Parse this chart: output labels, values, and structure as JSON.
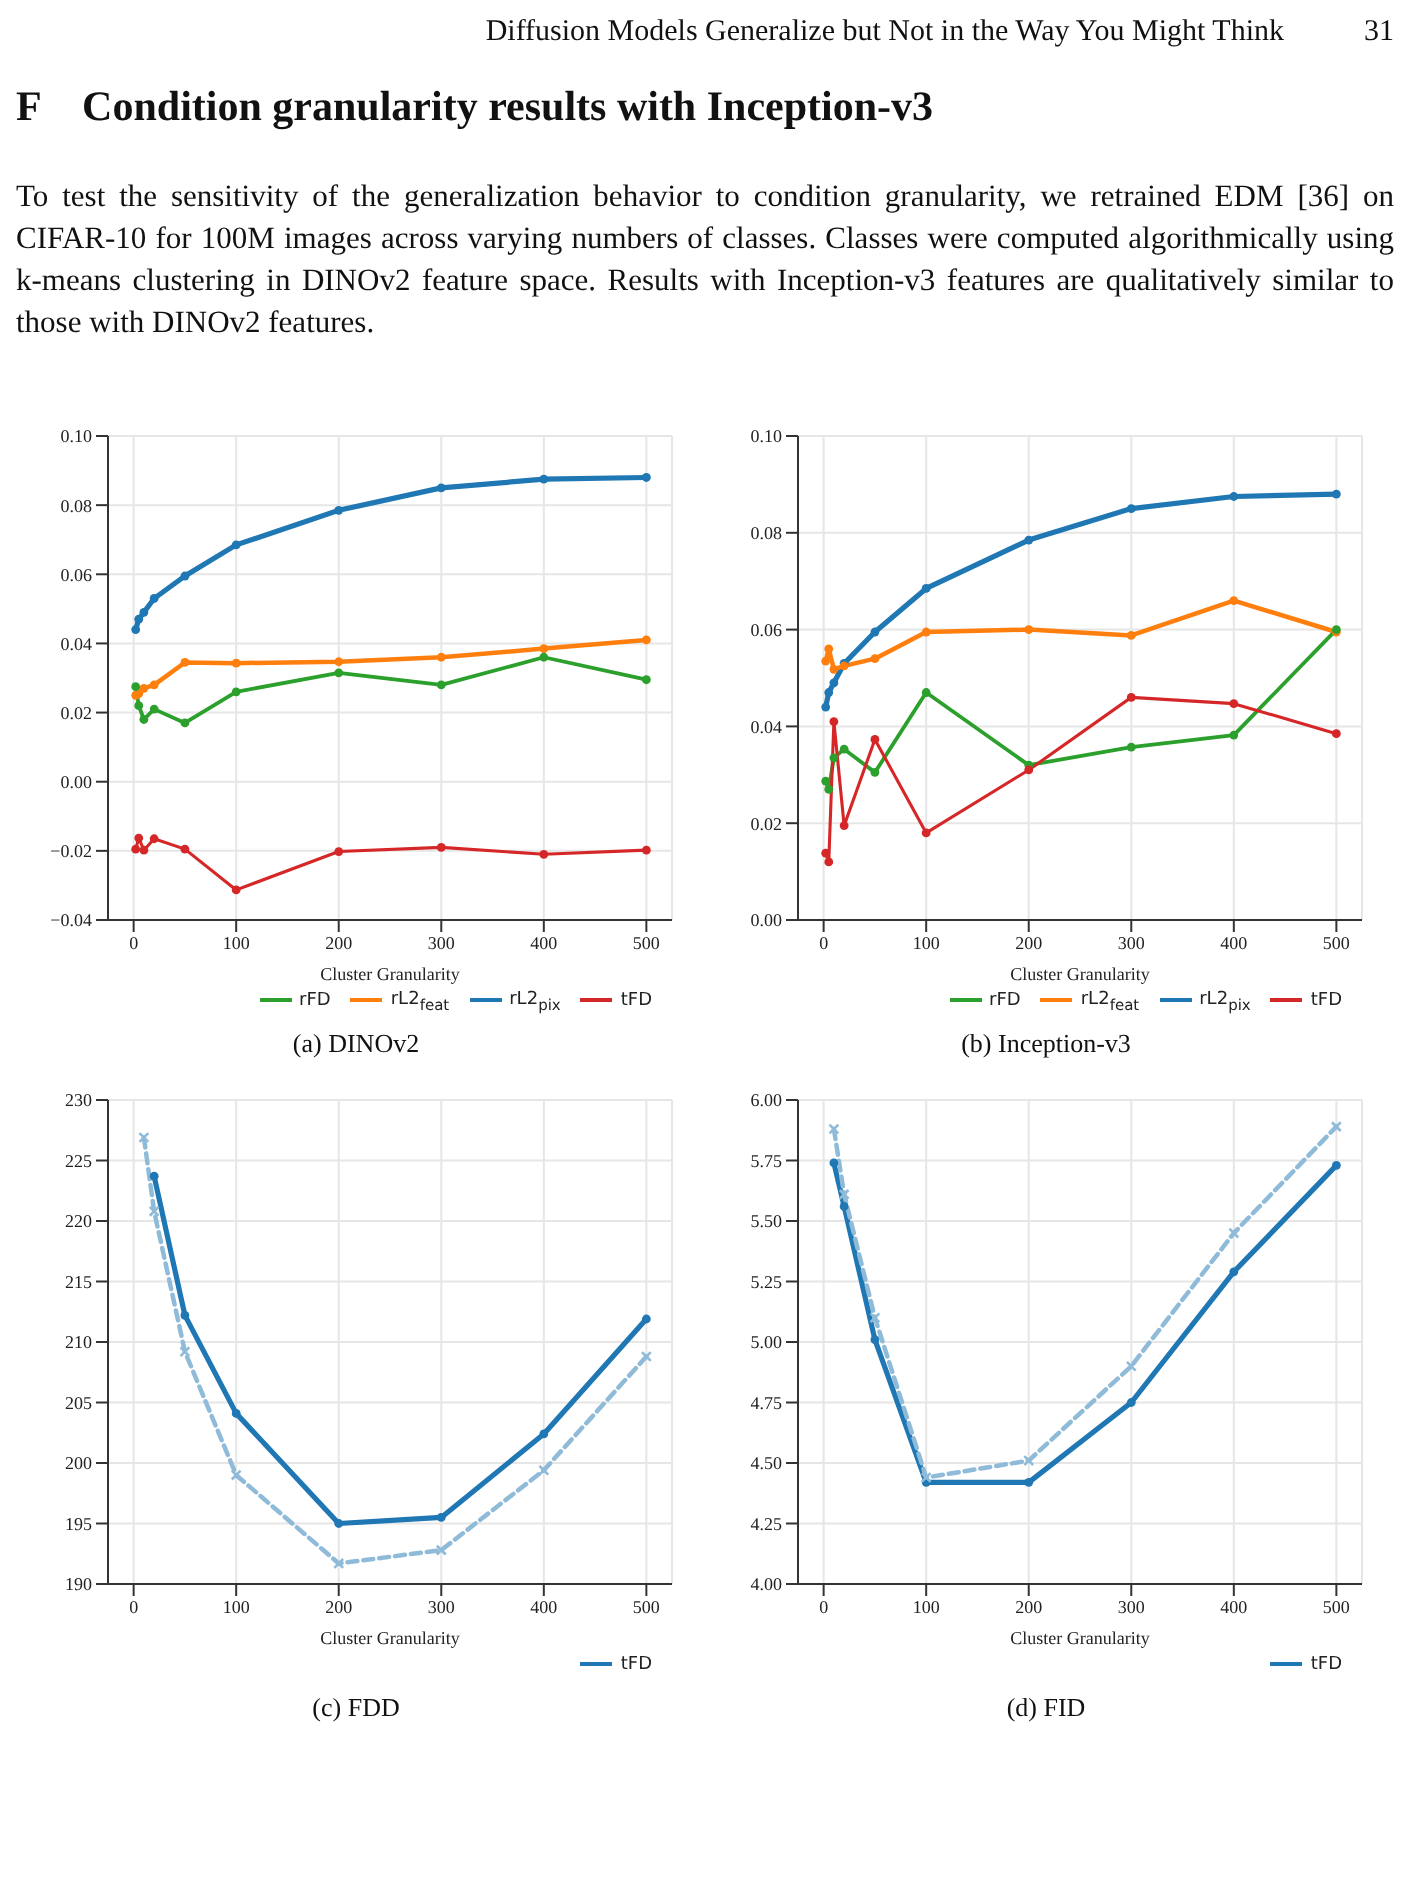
{
  "chart_data": [
    {
      "type": "line",
      "title": "(a) DINOv2",
      "xlabel": "Cluster Granularity",
      "annotations": [
        "Diffusion Models Generalize but Not in the Way You Might Think",
        "31",
        "F    Condition granularity results with Inception-v3",
        "To test the sensitivity of the generalization behavior to condition granularity, we retrained EDM [36] on CIFAR-10 for 100M images across varying numbers of classes. Classes were computed algorithmically using k-means clustering in DINOv2 feature space. Results with Inception-v3 features are qualitatively similar to those with DINOv2 features."
      ],
      "x": [
        2,
        5,
        10,
        20,
        50,
        100,
        200,
        300,
        400,
        500
      ],
      "series": [
        {
          "name": "rL2$_{pix}$",
          "color": "#1f77b4",
          "values": [
            0.044,
            0.047,
            0.049,
            0.053,
            0.0595,
            0.0685,
            0.0785,
            0.085,
            0.0875,
            0.088
          ]
        },
        {
          "name": "rL2$_{feat}$",
          "color": "#ff7f0e",
          "values": [
            0.025,
            0.0255,
            0.027,
            0.028,
            0.0345,
            0.0343,
            0.0347,
            0.036,
            0.0385,
            0.041
          ]
        },
        {
          "name": "rFD",
          "color": "#2ca02c",
          "values": [
            0.0275,
            0.022,
            0.018,
            0.021,
            0.017,
            0.026,
            0.0315,
            0.028,
            0.036,
            0.0295
          ]
        },
        {
          "name": "tFD",
          "color": "#d62728",
          "values": [
            -0.0195,
            -0.0163,
            -0.0198,
            -0.0165,
            -0.0195,
            -0.0313,
            -0.0202,
            -0.019,
            -0.021,
            -0.0198
          ]
        }
      ],
      "xlim": [
        -25,
        525
      ],
      "xticks": [
        0,
        100,
        200,
        300,
        400,
        500
      ],
      "ylim": [
        -0.04,
        0.1
      ],
      "yticks": [
        {
          "value": -0.04,
          "label": "−0.04"
        },
        {
          "value": -0.02,
          "label": "−0.02"
        },
        {
          "value": 0,
          "label": "0.00"
        },
        {
          "value": 0.02,
          "label": "0.02"
        },
        {
          "value": 0.04,
          "label": "0.04"
        },
        {
          "value": 0.06,
          "label": "0.06"
        },
        {
          "value": 0.08,
          "label": "0.08"
        },
        {
          "value": 0.1,
          "label": "0.10"
        }
      ],
      "grid": true,
      "legend": "bottom right",
      "marker": "circle",
      "line_style": "solid"
    },
    {
      "type": "line",
      "title": "(b) Inception-v3",
      "xlabel": "Cluster Granularity",
      "x": [
        2,
        5,
        10,
        20,
        50,
        100,
        200,
        300,
        400,
        500
      ],
      "series": [
        {
          "name": "rL2$_{pix}$",
          "color": "#1f77b4",
          "values": [
            0.044,
            0.047,
            0.049,
            0.053,
            0.0595,
            0.0685,
            0.0785,
            0.085,
            0.0875,
            0.088
          ]
        },
        {
          "name": "rL2$_{feat}$",
          "color": "#ff7f0e",
          "values": [
            0.0535,
            0.056,
            0.0518,
            0.0525,
            0.054,
            0.0595,
            0.06,
            0.0588,
            0.066,
            0.0595
          ]
        },
        {
          "name": "rFD",
          "color": "#2ca02c",
          "values": [
            0.0287,
            0.027,
            0.0335,
            0.0353,
            0.0305,
            0.047,
            0.032,
            0.0357,
            0.0382,
            0.06
          ]
        },
        {
          "name": "tFD",
          "color": "#d62728",
          "values": [
            0.0138,
            0.012,
            0.041,
            0.0195,
            0.0373,
            0.018,
            0.031,
            0.046,
            0.0447,
            0.0385
          ]
        }
      ],
      "xlim": [
        -25,
        525
      ],
      "xticks": [
        0,
        100,
        200,
        300,
        400,
        500
      ],
      "ylim": [
        0,
        0.1
      ],
      "yticks": [
        {
          "value": 0,
          "label": "0.00"
        },
        {
          "value": 0.02,
          "label": "0.02"
        },
        {
          "value": 0.04,
          "label": "0.04"
        },
        {
          "value": 0.06,
          "label": "0.06"
        },
        {
          "value": 0.08,
          "label": "0.08"
        },
        {
          "value": 0.1,
          "label": "0.10"
        }
      ],
      "grid": true,
      "legend": "bottom right",
      "marker": "circle",
      "line_style": "solid"
    },
    {
      "type": "line",
      "title": "(c) FDD",
      "xlabel": "Cluster Granularity",
      "x": [
        10,
        20,
        50,
        100,
        200,
        300,
        400,
        500
      ],
      "series": [
        {
          "name": "tFD",
          "color": "#1f77b4",
          "values": [
            null,
            223.7,
            212.2,
            204.1,
            195.0,
            195.5,
            202.4,
            211.9
          ]
        },
        {
          "color": "#8fbbd9",
          "line_style": "dashed",
          "marker": "cross",
          "values": [
            226.9,
            220.8,
            209.2,
            199.0,
            191.7,
            192.8,
            199.4,
            208.8
          ]
        }
      ],
      "xlim": [
        -25,
        525
      ],
      "xticks": [
        0,
        100,
        200,
        300,
        400,
        500
      ],
      "ylim": [
        190,
        230
      ],
      "yticks": [
        190,
        195,
        200,
        205,
        210,
        215,
        220,
        225,
        230
      ],
      "grid": true,
      "legend": "bottom right",
      "marker": "circle",
      "line_style": "solid"
    },
    {
      "type": "line",
      "title": "(d) FID",
      "xlabel": "Cluster Granularity",
      "x": [
        10,
        20,
        50,
        100,
        200,
        300,
        400,
        500
      ],
      "series": [
        {
          "name": "tFD",
          "color": "#1f77b4",
          "values": [
            5.74,
            5.56,
            5.01,
            4.42,
            4.42,
            4.75,
            5.29,
            5.73
          ]
        },
        {
          "color": "#8fbbd9",
          "line_style": "dashed",
          "marker": "cross",
          "values": [
            5.88,
            5.61,
            5.1,
            4.44,
            4.51,
            4.9,
            5.45,
            5.89
          ]
        }
      ],
      "xlim": [
        -25,
        525
      ],
      "xticks": [
        0,
        100,
        200,
        300,
        400,
        500
      ],
      "ylim": [
        4,
        6
      ],
      "yticks": [
        {
          "value": 4,
          "label": "4.00"
        },
        {
          "value": 4.25,
          "label": "4.25"
        },
        {
          "value": 4.5,
          "label": "4.50"
        },
        {
          "value": 4.75,
          "label": "4.75"
        },
        {
          "value": 5,
          "label": "5.00"
        },
        {
          "value": 5.25,
          "label": "5.25"
        },
        {
          "value": 5.5,
          "label": "5.50"
        },
        {
          "value": 5.75,
          "label": "5.75"
        },
        {
          "value": 6,
          "label": "6.00"
        }
      ],
      "grid": true,
      "legend": "bottom right",
      "marker": "circle",
      "line_style": "solid"
    }
  ]
}
